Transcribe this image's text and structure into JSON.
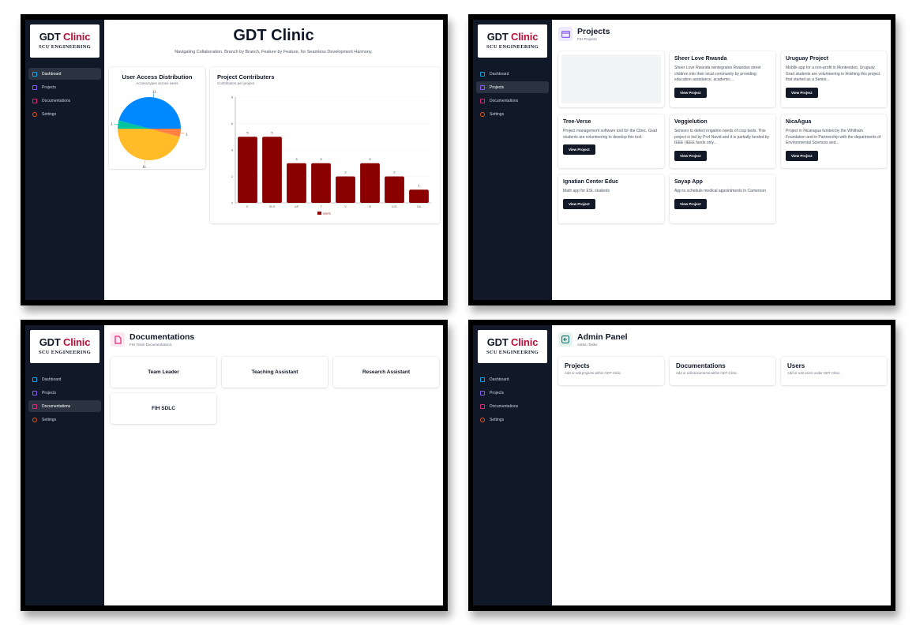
{
  "brand": {
    "name_a": "GDT",
    "name_b": "Clinic",
    "sub": "SCU ENGINEERING",
    "accent": "#b5123a"
  },
  "nav": [
    {
      "label": "Dashboard",
      "icon": "grid-icon",
      "color": "#0ea5e9"
    },
    {
      "label": "Projects",
      "icon": "window-icon",
      "color": "#8b5cf6"
    },
    {
      "label": "Documentations",
      "icon": "file-icon",
      "color": "#db2777"
    },
    {
      "label": "Settings",
      "icon": "gear-icon",
      "color": "#ea580c"
    }
  ],
  "dashboard": {
    "title": "GDT Clinic",
    "subtitle": "Navigating Collaboration, Branch by Branch, Feature by Feature, for Seamless Development Harmony.",
    "pie": {
      "title": "User Access Distribution",
      "subtitle": "Access types across users"
    },
    "bar": {
      "title": "Project Contributers",
      "subtitle": "Contributers per project"
    }
  },
  "chart_data": [
    {
      "type": "pie",
      "title": "User Access Distribution",
      "subtitle": "Access types across users",
      "values": [
        11,
        1,
        11,
        1
      ],
      "colors": [
        "#0088fe",
        "#00c49f",
        "#ffbb28",
        "#ff8042"
      ]
    },
    {
      "type": "bar",
      "title": "Project Contributers",
      "subtitle": "Contributers per project",
      "categories": [
        "E",
        "SLR",
        "UP",
        "T",
        "V",
        "N",
        "ICE",
        "SA"
      ],
      "series": [
        {
          "name": "users",
          "values": [
            5,
            5,
            3,
            3,
            2,
            3,
            2,
            1
          ]
        }
      ],
      "ylim": [
        0,
        8
      ],
      "yticks": [
        0,
        2,
        4,
        6,
        8
      ],
      "color": "#8b0000",
      "grid": true,
      "legend": "bottom"
    }
  ],
  "projects": {
    "title": "Projects",
    "subtitle": "FIH Projects",
    "button": "View Project",
    "items": [
      {
        "name": "",
        "desc": "",
        "placeholder": true
      },
      {
        "name": "Sheer Love Rwanda",
        "desc": "Sheer Love Rwanda reintegrates Rwandan street children into their local community by providing education assistance, academic..."
      },
      {
        "name": "Uruguay Project",
        "desc": "Mobile app for a non-profit in Montevideo, Uruguay. Grad students are volunteering in finishing this project that started as a Senior..."
      },
      {
        "name": "Tree-Verse",
        "desc": "Project management software tool for the Clinic. Grad students are volunteering to develop this tool."
      },
      {
        "name": "Veggielution",
        "desc": "Sensors to detect irrigation needs of crop beds. This project is led by Prof Navid and it is partially funded by IEEE (IEEE funds only..."
      },
      {
        "name": "NicaAgua",
        "desc": "Project in Nicaragua funded by the Whitham Foundation and in Partnership with the departments of Environmental Sciences and..."
      },
      {
        "name": "Ignatian Center Educ",
        "desc": "Math app for ESL students"
      },
      {
        "name": "Sayap App",
        "desc": "App to schedule medical appointments in Cameroon"
      }
    ]
  },
  "docs": {
    "title": "Documentations",
    "subtitle": "FIH Team Documentations.",
    "items": [
      "Team Leader",
      "Teaching Assistant",
      "Research Assistant",
      "FIH SDLC"
    ]
  },
  "admin": {
    "title": "Admin Panel",
    "subtitle": "Admin Tasks",
    "items": [
      {
        "title": "Projects",
        "desc": "Add or edit projects within GDT Clinic."
      },
      {
        "title": "Documentations",
        "desc": "Add or edit documents within GDT Clinic."
      },
      {
        "title": "Users",
        "desc": "Add or edit users under GDT Clinic."
      }
    ]
  }
}
